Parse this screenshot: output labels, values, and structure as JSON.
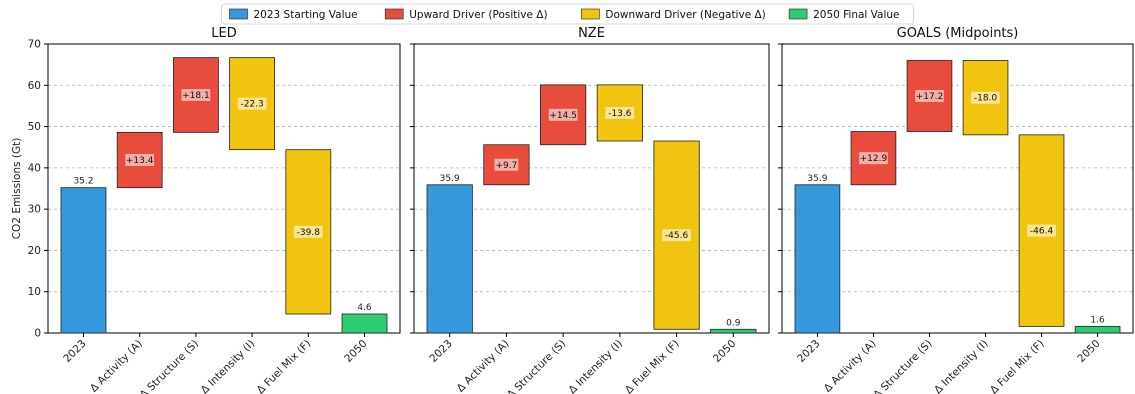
{
  "legend": {
    "items": [
      {
        "label": "2023 Starting Value",
        "color": "#3498db"
      },
      {
        "label": "Upward Driver (Positive Δ)",
        "color": "#e74c3c"
      },
      {
        "label": "Downward Driver (Negative Δ)",
        "color": "#f1c40f"
      },
      {
        "label": "2050 Final Value",
        "color": "#2ecc71"
      }
    ]
  },
  "chart_data": [
    {
      "type": "waterfall",
      "title": "LED",
      "ylabel": "CO2 Emissions (Gt)",
      "ylim": [
        0,
        70
      ],
      "yticks": [
        0,
        10,
        20,
        30,
        40,
        50,
        60,
        70
      ],
      "grid": true,
      "categories": [
        "2023",
        "Δ Activity (A)",
        "Δ Structure (S)",
        "Δ Intensity (I)",
        "Δ Fuel Mix (F)",
        "2050"
      ],
      "values": [
        35.2,
        13.4,
        18.1,
        -22.3,
        -39.8,
        4.6
      ],
      "labels": [
        "35.2",
        "+13.4",
        "+18.1",
        "-22.3",
        "-39.8",
        "4.6"
      ]
    },
    {
      "type": "waterfall",
      "title": "NZE",
      "ylabel": "",
      "ylim": [
        0,
        70
      ],
      "yticks": [
        0,
        10,
        20,
        30,
        40,
        50,
        60,
        70
      ],
      "grid": true,
      "categories": [
        "2023",
        "Δ Activity (A)",
        "Δ Structure (S)",
        "Δ Intensity (I)",
        "Δ Fuel Mix (F)",
        "2050"
      ],
      "values": [
        35.9,
        9.7,
        14.5,
        -13.6,
        -45.6,
        0.9
      ],
      "labels": [
        "35.9",
        "+9.7",
        "+14.5",
        "-13.6",
        "-45.6",
        "0.9"
      ]
    },
    {
      "type": "waterfall",
      "title": "GOALS (Midpoints)",
      "ylabel": "",
      "ylim": [
        0,
        70
      ],
      "yticks": [
        0,
        10,
        20,
        30,
        40,
        50,
        60,
        70
      ],
      "grid": true,
      "categories": [
        "2023",
        "Δ Activity (A)",
        "Δ Structure (S)",
        "Δ Intensity (I)",
        "Δ Fuel Mix (F)",
        "2050"
      ],
      "values": [
        35.9,
        12.9,
        17.2,
        -18.0,
        -46.4,
        1.6
      ],
      "labels": [
        "35.9",
        "+12.9",
        "+17.2",
        "-18.0",
        "-46.4",
        "1.6"
      ]
    }
  ]
}
